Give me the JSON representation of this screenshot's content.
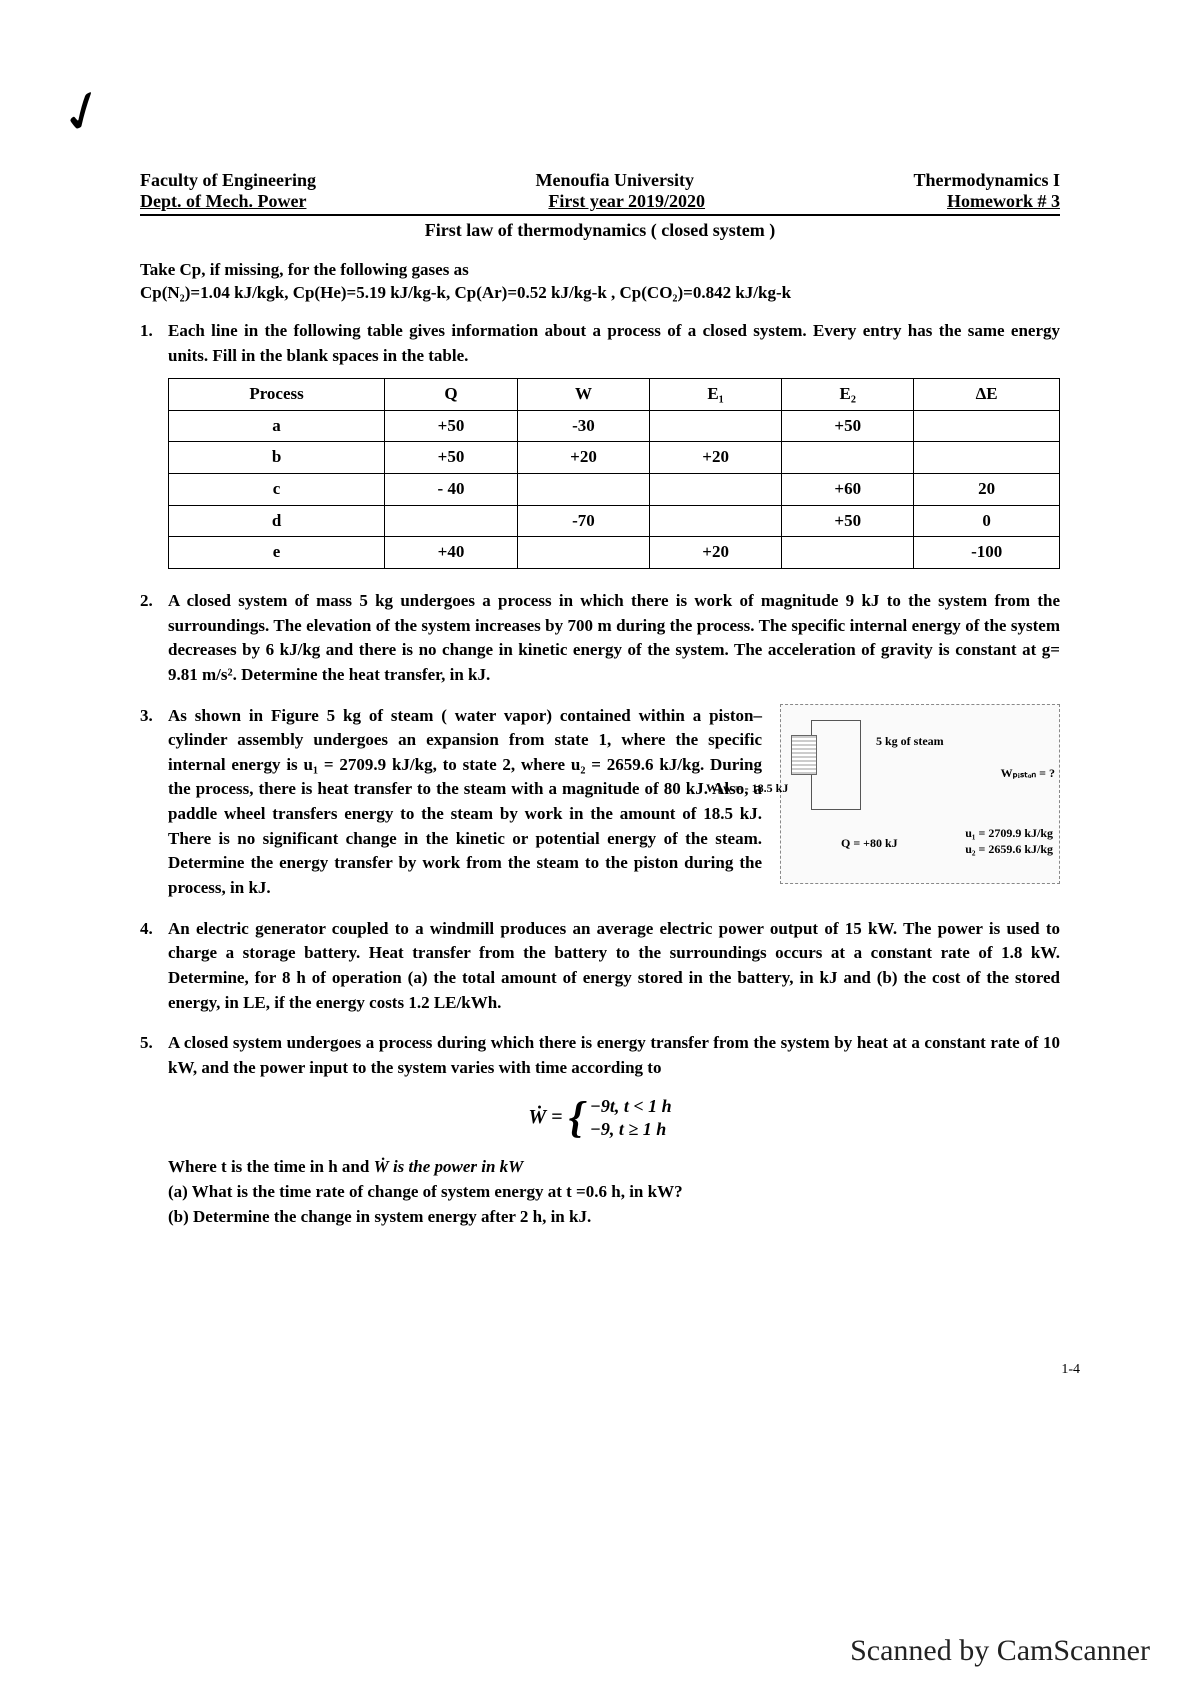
{
  "header": {
    "left1": "Faculty of Engineering",
    "left2": "Dept. of Mech. Power",
    "center1": "Menoufia University",
    "center2": "First year 2019/2020",
    "right1": "Thermodynamics I",
    "right2": "Homework # 3",
    "subtitle": "First law of thermodynamics ( closed system )"
  },
  "intro": {
    "line1": "Take Cp, if missing, for the following gases as",
    "line2": "Cp(N₂)=1.04 kJ/kgk, Cp(He)=5.19 kJ/kg-k, Cp(Ar)=0.52 kJ/kg-k , Cp(CO₂)=0.842 kJ/kg-k"
  },
  "q1": {
    "num": "1.",
    "text": "Each line in the following table gives information about a process of a closed system. Every entry has the same energy units. Fill in the blank spaces in the table.",
    "headers": [
      "Process",
      "Q",
      "W",
      "E₁",
      "E₂",
      "ΔE"
    ],
    "rows": [
      [
        "a",
        "+50",
        "-30",
        "",
        "+50",
        ""
      ],
      [
        "b",
        "+50",
        "+20",
        "+20",
        "",
        ""
      ],
      [
        "c",
        "- 40",
        "",
        "",
        "+60",
        "20"
      ],
      [
        "d",
        "",
        "-70",
        "",
        "+50",
        "0"
      ],
      [
        "e",
        "+40",
        "",
        "+20",
        "",
        "-100"
      ]
    ]
  },
  "q2": {
    "num": "2.",
    "text": "A closed system of mass 5 kg undergoes a process in which there is work of magnitude 9 kJ to the system from the surroundings. The elevation of the system increases by 700 m during the process. The specific internal energy of the system decreases by 6 kJ/kg and there is no change in kinetic energy of the system. The acceleration of gravity is constant at g= 9.81 m/s². Determine the heat transfer, in kJ."
  },
  "q3": {
    "num": "3.",
    "text": "As shown in Figure 5 kg of steam ( water vapor) contained within a piston–cylinder assembly undergoes an expansion from state 1, where the specific internal energy is u₁ = 2709.9 kJ/kg, to state 2, where u₂ = 2659.6 kJ/kg. During the process, there is heat transfer to the steam with a magnitude of 80 kJ. Also, a paddle wheel transfers energy to the steam by work in the amount of 18.5 kJ. There is no significant change in the kinetic or potential energy of the steam. Determine the energy transfer by work from the steam to the piston during the process, in kJ.",
    "fig": {
      "steam": "5 kg of steam",
      "wpw": "Wₚw = - 18.5 kJ",
      "wpiston": "Wₚᵢₛₜₒₙ = ?",
      "q": "Q = +80 kJ",
      "u1": "u₁ = 2709.9 kJ/kg",
      "u2": "u₂ = 2659.6 kJ/kg"
    }
  },
  "q4": {
    "num": "4.",
    "text": "An electric generator coupled to a windmill produces an average electric power output of 15 kW. The power is used to charge a storage battery. Heat transfer from the battery to the surroundings occurs at a constant rate of 1.8 kW. Determine, for 8 h of operation (a) the total amount of energy stored in the battery, in kJ and (b) the cost of the stored energy, in LE, if the energy costs 1.2 LE/kWh."
  },
  "q5": {
    "num": "5.",
    "text": "A closed system undergoes a process during which there is energy transfer from the system by heat at a constant rate of 10 kW, and the power input to the system varies with time according to",
    "eq_lhs": "Ẇ = ",
    "case1": "−9t,      t < 1 h",
    "case2": "−9,       t ≥ 1 h",
    "where": "Where t is the time in h and Ẇ is the power in kW",
    "a": "(a) What is the time rate of change of system energy at t =0.6 h, in kW?",
    "b": "(b) Determine the change in system energy after 2 h, in kJ."
  },
  "pagenum": "1-4",
  "scanned": "Scanned by CamScanner"
}
